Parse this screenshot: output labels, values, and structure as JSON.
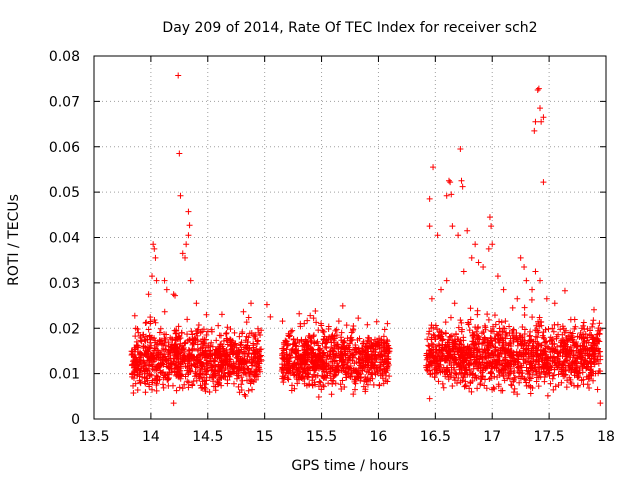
{
  "chart_data": {
    "type": "scatter",
    "title": "Day 209 of 2014, Rate Of TEC Index for receiver sch2",
    "xlabel": "GPS time / hours",
    "ylabel": "ROTI / TECUs",
    "xlim": [
      13.5,
      18
    ],
    "ylim": [
      0,
      0.08
    ],
    "xticks": [
      13.5,
      14,
      14.5,
      15,
      15.5,
      16,
      16.5,
      17,
      17.5,
      18
    ],
    "xtick_labels": [
      "13.5",
      "14",
      "14.5",
      "15",
      "15.5",
      "16",
      "16.5",
      "17",
      "17.5",
      "18"
    ],
    "yticks": [
      0,
      0.01,
      0.02,
      0.03,
      0.04,
      0.05,
      0.06,
      0.07,
      0.08
    ],
    "ytick_labels": [
      "0",
      "0.01",
      "0.02",
      "0.03",
      "0.04",
      "0.05",
      "0.06",
      "0.07",
      "0.08"
    ],
    "grid": true,
    "marker": "+",
    "series": [
      {
        "name": "ROTI",
        "color": "#ff0000",
        "segments": [
          {
            "x_range": [
              13.83,
              14.97
            ],
            "y_base_range": [
              0.005,
              0.02
            ]
          },
          {
            "x_range": [
              15.15,
              16.1
            ],
            "y_base_range": [
              0.005,
              0.02
            ]
          },
          {
            "x_range": [
              16.42,
              17.95
            ],
            "y_base_range": [
              0.005,
              0.022
            ]
          }
        ],
        "points": [
          [
            14.24,
            0.0757
          ],
          [
            14.25,
            0.0585
          ],
          [
            14.26,
            0.0492
          ],
          [
            14.33,
            0.0457
          ],
          [
            14.34,
            0.0427
          ],
          [
            14.33,
            0.0405
          ],
          [
            14.31,
            0.0385
          ],
          [
            14.28,
            0.0365
          ],
          [
            14.3,
            0.0355
          ],
          [
            14.02,
            0.0385
          ],
          [
            14.03,
            0.0375
          ],
          [
            14.04,
            0.0355
          ],
          [
            14.01,
            0.0315
          ],
          [
            14.05,
            0.0305
          ],
          [
            14.12,
            0.0305
          ],
          [
            14.14,
            0.0285
          ],
          [
            14.35,
            0.0305
          ],
          [
            14.2,
            0.0275
          ],
          [
            13.98,
            0.0275
          ],
          [
            14.4,
            0.0255
          ],
          [
            14.88,
            0.0255
          ],
          [
            15.02,
            0.0252
          ],
          [
            15.05,
            0.0225
          ],
          [
            16.45,
            0.0485
          ],
          [
            16.48,
            0.0555
          ],
          [
            16.62,
            0.0525
          ],
          [
            16.63,
            0.0522
          ],
          [
            16.6,
            0.0492
          ],
          [
            16.64,
            0.0495
          ],
          [
            16.72,
            0.0595
          ],
          [
            16.73,
            0.0525
          ],
          [
            16.74,
            0.0512
          ],
          [
            16.98,
            0.0445
          ],
          [
            16.99,
            0.0425
          ],
          [
            17.0,
            0.0385
          ],
          [
            16.97,
            0.0375
          ],
          [
            16.45,
            0.0425
          ],
          [
            16.52,
            0.0405
          ],
          [
            16.65,
            0.0425
          ],
          [
            16.7,
            0.0405
          ],
          [
            16.78,
            0.0415
          ],
          [
            16.85,
            0.0385
          ],
          [
            16.88,
            0.0345
          ],
          [
            16.92,
            0.0335
          ],
          [
            16.6,
            0.0305
          ],
          [
            16.55,
            0.0285
          ],
          [
            16.75,
            0.0325
          ],
          [
            16.82,
            0.0355
          ],
          [
            17.05,
            0.0315
          ],
          [
            17.1,
            0.0285
          ],
          [
            17.25,
            0.0355
          ],
          [
            17.28,
            0.0335
          ],
          [
            17.3,
            0.0305
          ],
          [
            17.4,
            0.0725
          ],
          [
            17.41,
            0.0728
          ],
          [
            17.42,
            0.0685
          ],
          [
            17.43,
            0.0655
          ],
          [
            17.45,
            0.0665
          ],
          [
            17.38,
            0.0655
          ],
          [
            17.37,
            0.0635
          ],
          [
            17.45,
            0.0522
          ],
          [
            17.42,
            0.0305
          ],
          [
            17.38,
            0.0325
          ],
          [
            17.35,
            0.0285
          ],
          [
            17.48,
            0.0265
          ],
          [
            17.22,
            0.0265
          ],
          [
            17.55,
            0.0255
          ],
          [
            17.18,
            0.0245
          ],
          [
            16.47,
            0.0265
          ],
          [
            16.67,
            0.0255
          ],
          [
            17.95,
            0.0035
          ],
          [
            14.2,
            0.0035
          ],
          [
            13.9,
            0.0085
          ],
          [
            16.45,
            0.0045
          ]
        ]
      }
    ]
  }
}
